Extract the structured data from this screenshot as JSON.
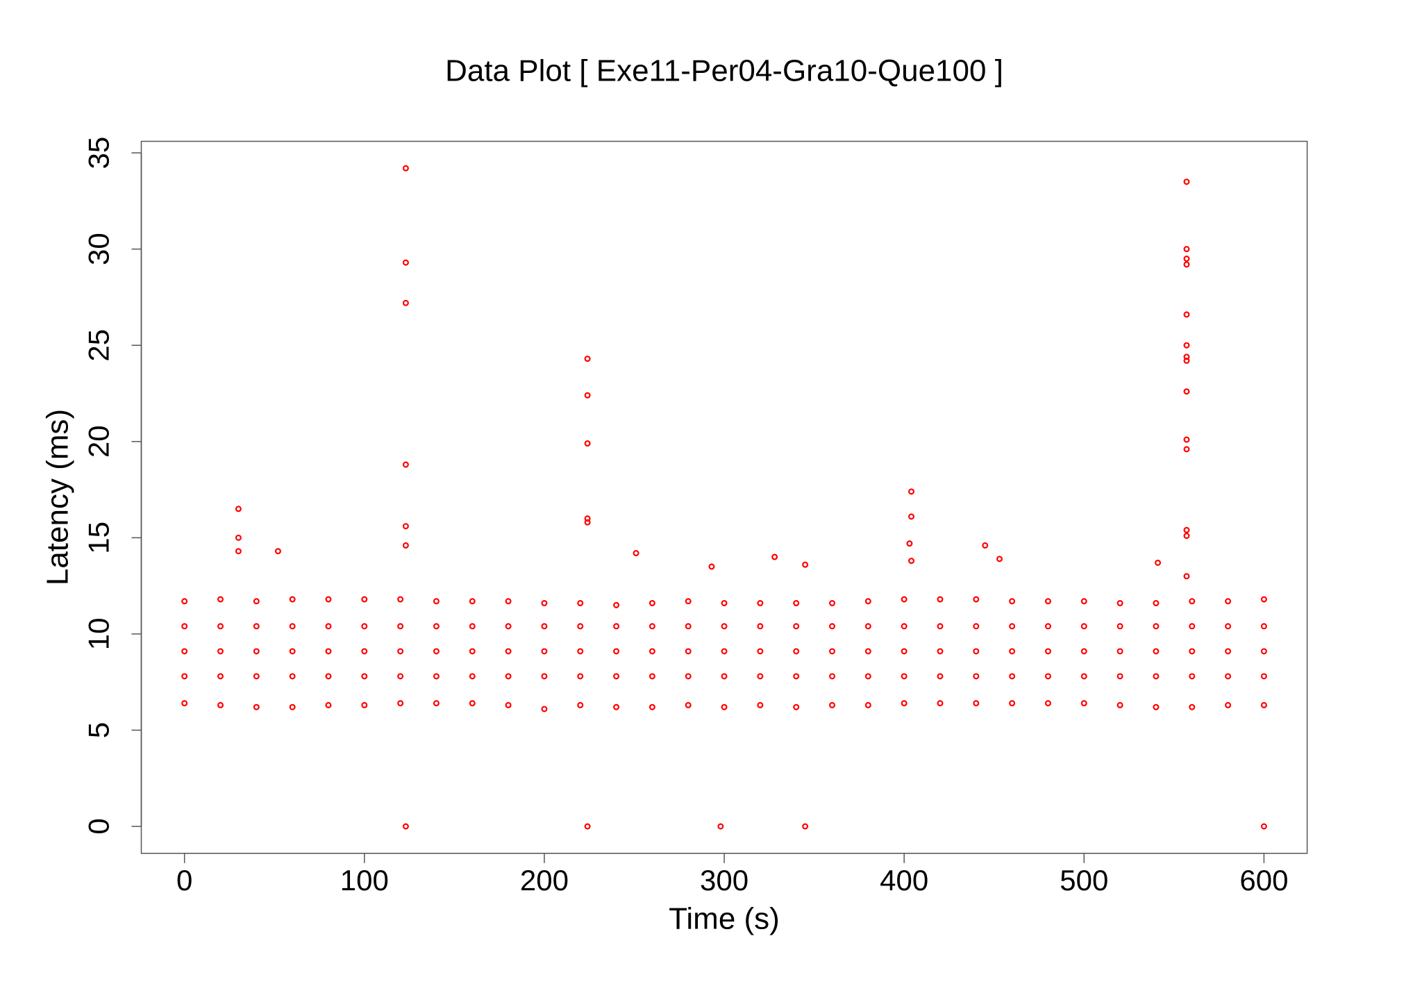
{
  "chart_data": {
    "type": "scatter",
    "title": "Data Plot [ Exe11-Per04-Gra10-Que100 ]",
    "x_label": "Time (s)",
    "y_label": "Latency (ms)",
    "color": "#ff0000",
    "xlim": [
      -24,
      624
    ],
    "ylim": [
      -1.4,
      35.6
    ],
    "xticks": [
      0,
      100,
      200,
      300,
      400,
      500,
      600
    ],
    "yticks": [
      0,
      5,
      10,
      15,
      20,
      25,
      30,
      35
    ],
    "x": [
      30,
      30,
      30,
      52,
      123,
      123,
      123,
      123,
      123,
      123,
      123,
      224,
      224,
      224,
      224,
      224,
      224,
      251,
      298,
      293,
      328,
      345,
      345,
      404,
      404,
      403,
      404,
      445,
      453,
      541,
      557,
      557,
      557,
      557,
      557,
      557,
      557,
      557,
      557,
      557,
      557,
      557,
      557,
      557,
      600,
      0,
      0,
      0,
      0,
      0,
      20,
      20,
      20,
      20,
      20,
      40,
      40,
      40,
      40,
      40,
      60,
      60,
      60,
      60,
      60,
      80,
      80,
      80,
      80,
      80,
      100,
      100,
      100,
      100,
      100,
      120,
      120,
      120,
      120,
      120,
      140,
      140,
      140,
      140,
      140,
      160,
      160,
      160,
      160,
      160,
      180,
      180,
      180,
      180,
      180,
      200,
      200,
      200,
      200,
      200,
      220,
      220,
      220,
      220,
      220,
      240,
      240,
      240,
      240,
      240,
      260,
      260,
      260,
      260,
      260,
      280,
      280,
      280,
      280,
      280,
      300,
      300,
      300,
      300,
      300,
      320,
      320,
      320,
      320,
      320,
      340,
      340,
      340,
      340,
      340,
      360,
      360,
      360,
      360,
      360,
      380,
      380,
      380,
      380,
      380,
      400,
      400,
      400,
      400,
      400,
      420,
      420,
      420,
      420,
      420,
      440,
      440,
      440,
      440,
      440,
      460,
      460,
      460,
      460,
      460,
      480,
      480,
      480,
      480,
      480,
      500,
      500,
      500,
      500,
      500,
      520,
      520,
      520,
      520,
      520,
      540,
      540,
      540,
      540,
      540,
      560,
      560,
      560,
      560,
      560,
      580,
      580,
      580,
      580,
      580,
      600,
      600,
      600,
      600,
      600
    ],
    "y": [
      16.5,
      15,
      14.3,
      14.3,
      34.2,
      29.3,
      27.2,
      18.8,
      15.6,
      14.6,
      0,
      24.3,
      22.4,
      19.9,
      16,
      15.8,
      0,
      14.2,
      0,
      13.5,
      14,
      13.6,
      0,
      17.4,
      16.1,
      14.7,
      13.8,
      14.6,
      13.9,
      13.7,
      33.5,
      30,
      29.5,
      29.2,
      26.6,
      25,
      24.4,
      24.2,
      22.6,
      20.1,
      19.6,
      15.4,
      15.1,
      13,
      0,
      6.4,
      7.8,
      9.1,
      10.4,
      11.7,
      6.3,
      7.8,
      9.1,
      10.4,
      11.8,
      6.2,
      7.8,
      9.1,
      10.4,
      11.7,
      6.2,
      7.8,
      9.1,
      10.4,
      11.8,
      6.3,
      7.8,
      9.1,
      10.4,
      11.8,
      6.3,
      7.8,
      9.1,
      10.4,
      11.8,
      6.4,
      7.8,
      9.1,
      10.4,
      11.8,
      6.4,
      7.8,
      9.1,
      10.4,
      11.7,
      6.4,
      7.8,
      9.1,
      10.4,
      11.7,
      6.3,
      7.8,
      9.1,
      10.4,
      11.7,
      6.1,
      7.8,
      9.1,
      10.4,
      11.6,
      6.3,
      7.8,
      9.1,
      10.4,
      11.6,
      6.2,
      7.8,
      9.1,
      10.4,
      11.5,
      6.2,
      7.8,
      9.1,
      10.4,
      11.6,
      6.3,
      7.8,
      9.1,
      10.4,
      11.7,
      6.2,
      7.8,
      9.1,
      10.4,
      11.6,
      6.3,
      7.8,
      9.1,
      10.4,
      11.6,
      6.2,
      7.8,
      9.1,
      10.4,
      11.6,
      6.3,
      7.8,
      9.1,
      10.4,
      11.6,
      6.3,
      7.8,
      9.1,
      10.4,
      11.7,
      6.4,
      7.8,
      9.1,
      10.4,
      11.8,
      6.4,
      7.8,
      9.1,
      10.4,
      11.8,
      6.4,
      7.8,
      9.1,
      10.4,
      11.8,
      6.4,
      7.8,
      9.1,
      10.4,
      11.7,
      6.4,
      7.8,
      9.1,
      10.4,
      11.7,
      6.4,
      7.8,
      9.1,
      10.4,
      11.7,
      6.3,
      7.8,
      9.1,
      10.4,
      11.6,
      6.2,
      7.8,
      9.1,
      10.4,
      11.6,
      6.2,
      7.8,
      9.1,
      10.4,
      11.7,
      6.3,
      7.8,
      9.1,
      10.4,
      11.7,
      6.3,
      7.8,
      9.1,
      10.4,
      11.8
    ],
    "box": true
  }
}
